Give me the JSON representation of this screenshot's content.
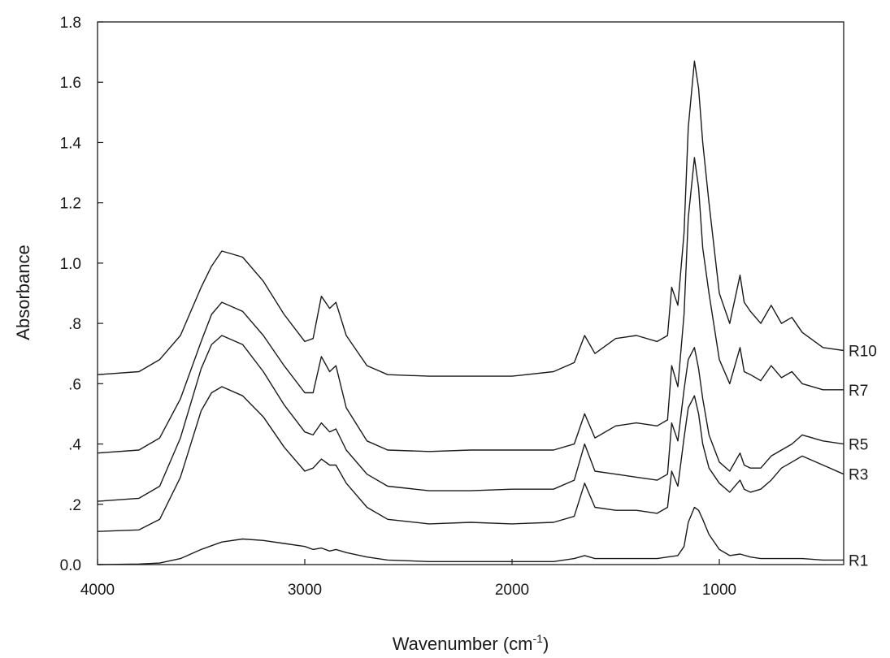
{
  "chart_data": {
    "type": "line",
    "xlabel": {
      "main": "Wavenumber (cm",
      "sup": "-1",
      "end": ")"
    },
    "ylabel": "Absorbance",
    "xlim": [
      4000,
      400
    ],
    "ylim": [
      0,
      1.8
    ],
    "x_ticks": [
      {
        "value": 4000,
        "label": "4000"
      },
      {
        "value": 3000,
        "label": "3000"
      },
      {
        "value": 2000,
        "label": "2000"
      },
      {
        "value": 1000,
        "label": "1000"
      }
    ],
    "y_ticks": [
      {
        "value": 0.0,
        "label": "0.0"
      },
      {
        "value": 0.2,
        "label": ".2"
      },
      {
        "value": 0.4,
        "label": ".4"
      },
      {
        "value": 0.6,
        "label": ".6"
      },
      {
        "value": 0.8,
        "label": ".8"
      },
      {
        "value": 1.0,
        "label": "1.0"
      },
      {
        "value": 1.2,
        "label": "1.2"
      },
      {
        "value": 1.4,
        "label": "1.4"
      },
      {
        "value": 1.6,
        "label": "1.6"
      },
      {
        "value": 1.8,
        "label": "1.8"
      }
    ],
    "grid": false,
    "line_color": "#1a1a1a",
    "series": [
      {
        "name": "R10",
        "x": [
          4000,
          3800,
          3700,
          3600,
          3500,
          3450,
          3400,
          3300,
          3200,
          3100,
          3000,
          2960,
          2920,
          2880,
          2850,
          2800,
          2700,
          2600,
          2400,
          2200,
          2000,
          1800,
          1700,
          1650,
          1600,
          1500,
          1400,
          1300,
          1250,
          1230,
          1200,
          1170,
          1150,
          1120,
          1100,
          1080,
          1050,
          1000,
          950,
          900,
          880,
          850,
          800,
          750,
          700,
          650,
          600,
          500,
          400
        ],
        "y": [
          0.63,
          0.64,
          0.68,
          0.76,
          0.92,
          0.99,
          1.04,
          1.02,
          0.94,
          0.83,
          0.74,
          0.75,
          0.89,
          0.85,
          0.87,
          0.76,
          0.66,
          0.63,
          0.625,
          0.625,
          0.625,
          0.64,
          0.67,
          0.76,
          0.7,
          0.75,
          0.76,
          0.74,
          0.76,
          0.92,
          0.86,
          1.1,
          1.45,
          1.67,
          1.58,
          1.4,
          1.2,
          0.9,
          0.8,
          0.96,
          0.87,
          0.84,
          0.8,
          0.86,
          0.8,
          0.82,
          0.77,
          0.72,
          0.71
        ]
      },
      {
        "name": "R7",
        "x": [
          4000,
          3800,
          3700,
          3600,
          3500,
          3450,
          3400,
          3300,
          3200,
          3100,
          3000,
          2960,
          2920,
          2880,
          2850,
          2800,
          2700,
          2600,
          2400,
          2200,
          2000,
          1800,
          1700,
          1650,
          1600,
          1500,
          1400,
          1300,
          1250,
          1230,
          1200,
          1170,
          1150,
          1120,
          1100,
          1080,
          1050,
          1000,
          950,
          900,
          880,
          850,
          800,
          750,
          700,
          650,
          600,
          500,
          400
        ],
        "y": [
          0.37,
          0.38,
          0.42,
          0.55,
          0.74,
          0.83,
          0.87,
          0.84,
          0.76,
          0.66,
          0.57,
          0.57,
          0.69,
          0.64,
          0.66,
          0.52,
          0.41,
          0.38,
          0.375,
          0.38,
          0.38,
          0.38,
          0.4,
          0.5,
          0.42,
          0.46,
          0.47,
          0.46,
          0.48,
          0.66,
          0.59,
          0.83,
          1.15,
          1.35,
          1.25,
          1.05,
          0.9,
          0.68,
          0.6,
          0.72,
          0.64,
          0.63,
          0.61,
          0.66,
          0.62,
          0.64,
          0.6,
          0.58,
          0.58
        ]
      },
      {
        "name": "R5",
        "x": [
          4000,
          3800,
          3700,
          3600,
          3500,
          3450,
          3400,
          3300,
          3200,
          3100,
          3000,
          2960,
          2920,
          2880,
          2850,
          2800,
          2700,
          2600,
          2400,
          2200,
          2000,
          1800,
          1700,
          1650,
          1600,
          1500,
          1400,
          1300,
          1250,
          1230,
          1200,
          1170,
          1150,
          1120,
          1100,
          1080,
          1050,
          1000,
          950,
          900,
          880,
          850,
          800,
          750,
          700,
          650,
          600,
          500,
          400
        ],
        "y": [
          0.21,
          0.22,
          0.26,
          0.42,
          0.65,
          0.73,
          0.76,
          0.73,
          0.64,
          0.53,
          0.44,
          0.43,
          0.47,
          0.44,
          0.45,
          0.38,
          0.3,
          0.26,
          0.245,
          0.245,
          0.25,
          0.25,
          0.28,
          0.4,
          0.31,
          0.3,
          0.29,
          0.28,
          0.3,
          0.47,
          0.41,
          0.58,
          0.68,
          0.72,
          0.65,
          0.55,
          0.43,
          0.34,
          0.31,
          0.37,
          0.33,
          0.32,
          0.32,
          0.36,
          0.38,
          0.4,
          0.43,
          0.41,
          0.4
        ]
      },
      {
        "name": "R3",
        "x": [
          4000,
          3800,
          3700,
          3600,
          3500,
          3450,
          3400,
          3300,
          3200,
          3100,
          3000,
          2960,
          2920,
          2880,
          2850,
          2800,
          2700,
          2600,
          2400,
          2200,
          2000,
          1800,
          1700,
          1650,
          1600,
          1500,
          1400,
          1300,
          1250,
          1230,
          1200,
          1170,
          1150,
          1120,
          1100,
          1080,
          1050,
          1000,
          950,
          900,
          880,
          850,
          800,
          750,
          700,
          650,
          600,
          500,
          400
        ],
        "y": [
          0.11,
          0.115,
          0.15,
          0.29,
          0.51,
          0.57,
          0.59,
          0.56,
          0.49,
          0.39,
          0.31,
          0.32,
          0.35,
          0.33,
          0.33,
          0.27,
          0.19,
          0.15,
          0.135,
          0.14,
          0.135,
          0.14,
          0.16,
          0.27,
          0.19,
          0.18,
          0.18,
          0.17,
          0.19,
          0.31,
          0.26,
          0.42,
          0.52,
          0.56,
          0.5,
          0.4,
          0.32,
          0.27,
          0.24,
          0.28,
          0.25,
          0.24,
          0.25,
          0.28,
          0.32,
          0.34,
          0.36,
          0.33,
          0.3
        ]
      },
      {
        "name": "R1",
        "x": [
          4000,
          3800,
          3700,
          3600,
          3500,
          3400,
          3300,
          3200,
          3100,
          3000,
          2960,
          2920,
          2880,
          2850,
          2800,
          2700,
          2600,
          2400,
          2200,
          2000,
          1800,
          1700,
          1650,
          1600,
          1500,
          1400,
          1300,
          1250,
          1200,
          1170,
          1150,
          1120,
          1100,
          1080,
          1050,
          1000,
          950,
          900,
          850,
          800,
          700,
          600,
          500,
          400
        ],
        "y": [
          0.0,
          0.002,
          0.005,
          0.02,
          0.05,
          0.075,
          0.085,
          0.08,
          0.07,
          0.06,
          0.05,
          0.055,
          0.045,
          0.05,
          0.04,
          0.025,
          0.015,
          0.01,
          0.01,
          0.01,
          0.01,
          0.02,
          0.03,
          0.02,
          0.02,
          0.02,
          0.02,
          0.025,
          0.03,
          0.06,
          0.14,
          0.19,
          0.18,
          0.15,
          0.1,
          0.05,
          0.03,
          0.035,
          0.025,
          0.02,
          0.02,
          0.02,
          0.015,
          0.015
        ]
      }
    ]
  }
}
